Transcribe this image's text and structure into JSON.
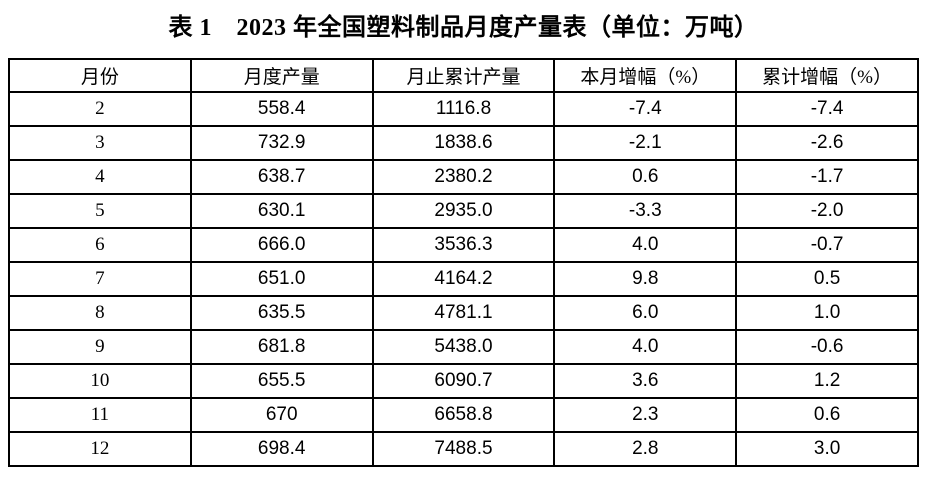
{
  "chart_data": {
    "type": "table",
    "title": "表 1　2023 年全国塑料制品月度产量表（单位：万吨）",
    "unit": "万吨",
    "year": "2023",
    "columns": [
      "月份",
      "月度产量",
      "月止累计产量",
      "本月增幅（%）",
      "累计增幅（%）"
    ],
    "rows": [
      [
        "2",
        "558.4",
        "1116.8",
        "-7.4",
        "-7.4"
      ],
      [
        "3",
        "732.9",
        "1838.6",
        "-2.1",
        "-2.6"
      ],
      [
        "4",
        "638.7",
        "2380.2",
        "0.6",
        "-1.7"
      ],
      [
        "5",
        "630.1",
        "2935.0",
        "-3.3",
        "-2.0"
      ],
      [
        "6",
        "666.0",
        "3536.3",
        "4.0",
        "-0.7"
      ],
      [
        "7",
        "651.0",
        "4164.2",
        "9.8",
        "0.5"
      ],
      [
        "8",
        "635.5",
        "4781.1",
        "6.0",
        "1.0"
      ],
      [
        "9",
        "681.8",
        "5438.0",
        "4.0",
        "-0.6"
      ],
      [
        "10",
        "655.5",
        "6090.7",
        "3.6",
        "1.2"
      ],
      [
        "11",
        "670",
        "6658.8",
        "2.3",
        "0.6"
      ],
      [
        "12",
        "698.4",
        "7488.5",
        "2.8",
        "3.0"
      ]
    ]
  },
  "colors": {
    "background": "#ffffff",
    "text": "#000000",
    "border": "#000000"
  }
}
